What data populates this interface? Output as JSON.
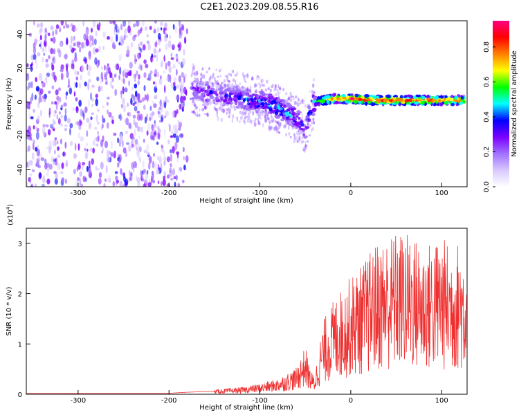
{
  "title": "C2E1.2023.209.08.55.R16",
  "colorbar": {
    "label": "Normalized spectral amplitude",
    "ticks": [
      "0.0",
      "0.2",
      "0.4",
      "0.6",
      "0.8"
    ],
    "range": [
      0,
      0.95
    ],
    "colors": [
      "#ffffff",
      "#d9c8ff",
      "#a070ff",
      "#7a00ff",
      "#0000ff",
      "#00ffff",
      "#00ff00",
      "#ffff00",
      "#ff7f00",
      "#ff0000",
      "#ff0080"
    ]
  },
  "chart_data": [
    {
      "type": "heatmap",
      "xlabel": "Height of straight line (km)",
      "ylabel": "Frequency (Hz)",
      "xlim": [
        -357,
        128
      ],
      "ylim": [
        -50,
        48
      ],
      "xticks": [
        "-300",
        "-200",
        "-100",
        "0",
        "100"
      ],
      "yticks": [
        "-40",
        "-20",
        "0",
        "20",
        "40"
      ],
      "ridge": {
        "x": [
          -175,
          -150,
          -125,
          -100,
          -80,
          -65,
          -55,
          -50,
          -45,
          -40,
          -30,
          -20,
          0,
          25,
          50,
          75,
          100,
          125
        ],
        "y": [
          7,
          5,
          3,
          0,
          -3,
          -8,
          -12,
          -16,
          -6,
          0,
          1,
          2,
          2,
          1,
          1,
          1,
          1,
          1
        ],
        "amplitude": [
          0.25,
          0.3,
          0.35,
          0.4,
          0.45,
          0.45,
          0.35,
          0.3,
          0.4,
          0.5,
          0.7,
          0.8,
          0.85,
          0.9,
          0.85,
          0.85,
          0.8,
          0.75
        ]
      },
      "noise_region": {
        "x_from": -357,
        "x_to": -180,
        "amplitude": 0.3
      }
    },
    {
      "type": "line",
      "xlabel": "Height of straight line (km)",
      "ylabel": "SNR (10 * v/v)",
      "multiplier": "(x10",
      "multiplier_exp": "4",
      "multiplier_close": ")",
      "xlim": [
        -357,
        128
      ],
      "ylim": [
        0,
        3.3
      ],
      "xticks": [
        "-300",
        "-200",
        "-100",
        "0",
        "100"
      ],
      "yticks": [
        "0",
        "1",
        "2",
        "3"
      ],
      "color": "#ee3030",
      "series": [
        {
          "x": [
            -357,
            -300,
            -250,
            -200,
            -180,
            -150,
            -120,
            -100,
            -80,
            -60,
            -50,
            -45,
            -40,
            -35,
            -30,
            -20,
            -10,
            0,
            10,
            20,
            30,
            40,
            50,
            60,
            70,
            80,
            90,
            100,
            110,
            120,
            128
          ],
          "y": [
            0.01,
            0.01,
            0.01,
            0.01,
            0.03,
            0.05,
            0.08,
            0.12,
            0.18,
            0.3,
            0.55,
            0.3,
            0.2,
            0.55,
            0.85,
            1.05,
            1.2,
            1.35,
            1.45,
            1.6,
            1.75,
            1.8,
            1.85,
            1.85,
            1.8,
            1.7,
            1.75,
            1.8,
            1.7,
            1.75,
            1.6
          ]
        }
      ]
    }
  ]
}
